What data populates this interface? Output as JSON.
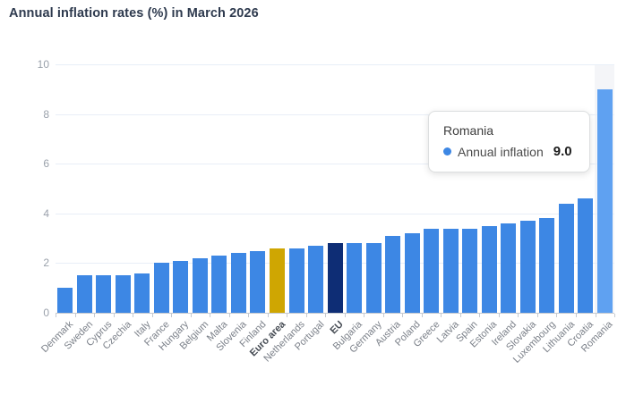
{
  "page": {
    "title": "Annual inflation rates (%) in March 2026"
  },
  "tooltip": {
    "title": "Romania",
    "series_label": "Annual inflation",
    "value": "9.0"
  },
  "chart_data": {
    "type": "bar",
    "title": "Annual inflation rates (%) in March 2026",
    "xlabel": "",
    "ylabel": "",
    "ylim": [
      0,
      10
    ],
    "yticks": [
      0,
      2,
      4,
      6,
      8,
      10
    ],
    "grid": true,
    "series_name": "Annual inflation",
    "categories": [
      "Denmark",
      "Sweden",
      "Cyprus",
      "Czechia",
      "Italy",
      "France",
      "Hungary",
      "Belgium",
      "Malta",
      "Slovenia",
      "Finland",
      "Euro area",
      "Netherlands",
      "Portugal",
      "EU",
      "Bulgaria",
      "Germany",
      "Austria",
      "Poland",
      "Greece",
      "Latvia",
      "Spain",
      "Estonia",
      "Ireland",
      "Slovakia",
      "Luxembourg",
      "Lithuania",
      "Croatia",
      "Romania"
    ],
    "values": [
      1.0,
      1.5,
      1.5,
      1.5,
      1.6,
      2.0,
      2.1,
      2.2,
      2.3,
      2.4,
      2.5,
      2.6,
      2.6,
      2.7,
      2.8,
      2.8,
      2.8,
      3.1,
      3.2,
      3.4,
      3.4,
      3.4,
      3.5,
      3.6,
      3.7,
      3.8,
      4.4,
      4.6,
      9.0
    ],
    "bar_color_default": "#3d87e4",
    "category_colors": {
      "Euro area": "#cfa602",
      "EU": "#0e2d75",
      "Romania": "#5fa1f1"
    },
    "bold_labels": [
      "Euro area",
      "EU"
    ],
    "highlighted_category": "Romania",
    "hover_band_color": "#f4f5f8",
    "legend_position": "none"
  }
}
